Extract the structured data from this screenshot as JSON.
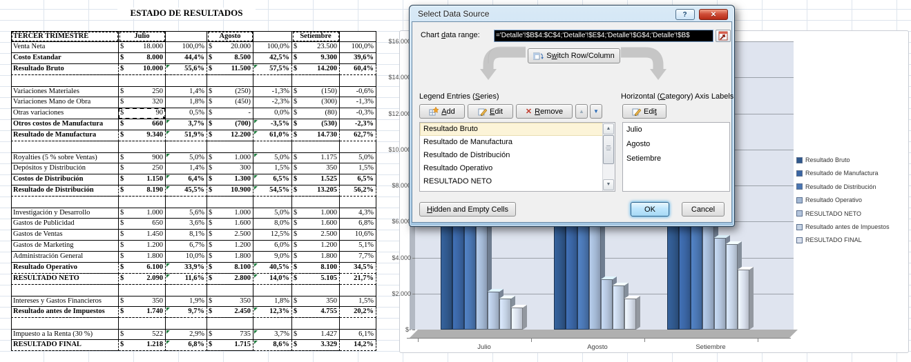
{
  "sheet": {
    "title": "ESTADO DE RESULTADOS"
  },
  "table": {
    "currency_symbol": "$",
    "header": {
      "label": "TERCER TRIMESTRE",
      "months": [
        "Julio",
        "Agosto",
        "Setiembre"
      ]
    },
    "rows": [
      {
        "label": "Venta Neta",
        "values": [
          "18.000",
          "100,0%",
          "20.000",
          "100,0%",
          "23.500",
          "100,0%"
        ]
      },
      {
        "label": "Costo Estandar",
        "bold": true,
        "values": [
          "8.000",
          "44,4%",
          "8.500",
          "42,5%",
          "9.300",
          "39,6%"
        ]
      },
      {
        "label": "Resultado Bruto",
        "bold": true,
        "selected": true,
        "error_marks": true,
        "values": [
          "10.000",
          "55,6%",
          "11.500",
          "57,5%",
          "14.200",
          "60,4%"
        ]
      },
      {
        "spacer": true
      },
      {
        "label": "Variaciones Materiales",
        "values": [
          "250",
          "1,4%",
          "(250)",
          "-1,3%",
          "(150)",
          "-0,6%"
        ]
      },
      {
        "label": "Variaciones Mano de Obra",
        "values": [
          "320",
          "1,8%",
          "(450)",
          "-2,3%",
          "(300)",
          "-1,3%"
        ]
      },
      {
        "label": "Otras variaciones",
        "active_cell": true,
        "values": [
          "90",
          "0,5%",
          "-",
          "0,0%",
          "(80)",
          "-0,3%"
        ]
      },
      {
        "label": "Otros costos de Manufactura",
        "bold": true,
        "error_marks": true,
        "values": [
          "660",
          "3,7%",
          "(700)",
          "-3,5%",
          "(530)",
          "-2,3%"
        ]
      },
      {
        "label": "Resultado de Manufactura",
        "bold": true,
        "selected": true,
        "error_marks": true,
        "values": [
          "9.340",
          "51,9%",
          "12.200",
          "61,0%",
          "14.730",
          "62,7%"
        ]
      },
      {
        "spacer": true
      },
      {
        "label": "Royalties (5 % sobre Ventas)",
        "error_marks": true,
        "values": [
          "900",
          "5,0%",
          "1.000",
          "5,0%",
          "1.175",
          "5,0%"
        ]
      },
      {
        "label": "Depósitos y Distribución",
        "values": [
          "250",
          "1,4%",
          "300",
          "1,5%",
          "350",
          "1,5%"
        ]
      },
      {
        "label": "Costos de Distribución",
        "bold": true,
        "error_marks": true,
        "values": [
          "1.150",
          "6,4%",
          "1.300",
          "6,5%",
          "1.525",
          "6,5%"
        ]
      },
      {
        "label": "Resultado de Distribución",
        "bold": true,
        "selected": true,
        "error_marks": true,
        "values": [
          "8.190",
          "45,5%",
          "10.900",
          "54,5%",
          "13.205",
          "56,2%"
        ]
      },
      {
        "spacer": true
      },
      {
        "label": "Investigación y Desarrollo",
        "values": [
          "1.000",
          "5,6%",
          "1.000",
          "5,0%",
          "1.000",
          "4,3%"
        ]
      },
      {
        "label": "Gastos de Publicidad",
        "values": [
          "650",
          "3,6%",
          "1.600",
          "8,0%",
          "1.600",
          "6,8%"
        ]
      },
      {
        "label": "Gastos de Ventas",
        "values": [
          "1.450",
          "8,1%",
          "2.500",
          "12,5%",
          "2.500",
          "10,6%"
        ]
      },
      {
        "label": "Gastos de Marketing",
        "values": [
          "1.200",
          "6,7%",
          "1.200",
          "6,0%",
          "1.200",
          "5,1%"
        ]
      },
      {
        "label": "Administración General",
        "values": [
          "1.800",
          "10,0%",
          "1.800",
          "9,0%",
          "1.800",
          "7,7%"
        ]
      },
      {
        "label": "Resultado Operativo",
        "bold": true,
        "selected": true,
        "error_marks": true,
        "values": [
          "6.100",
          "33,9%",
          "8.100",
          "40,5%",
          "8.100",
          "34,5%"
        ]
      },
      {
        "label": "RESULTADO NETO",
        "bold": true,
        "selected": true,
        "error_marks": true,
        "values": [
          "2.090",
          "11,6%",
          "2.800",
          "14,0%",
          "5.105",
          "21,7%"
        ]
      },
      {
        "spacer": true
      },
      {
        "label": "Intereses y Gastos Financieros",
        "values": [
          "350",
          "1,9%",
          "350",
          "1,8%",
          "350",
          "1,5%"
        ]
      },
      {
        "label": "Resultado antes de Impuestos",
        "bold": true,
        "selected": true,
        "error_marks": true,
        "values": [
          "1.740",
          "9,7%",
          "2.450",
          "12,3%",
          "4.755",
          "20,2%"
        ]
      },
      {
        "spacer": true
      },
      {
        "label": "Impuesto a la Renta (30 %)",
        "error_marks": true,
        "values": [
          "522",
          "2,9%",
          "735",
          "3,7%",
          "1.427",
          "6,1%"
        ]
      },
      {
        "label": "RESULTADO FINAL",
        "bold": true,
        "selected": true,
        "error_marks": true,
        "values": [
          "1.218",
          "6,8%",
          "1.715",
          "8,6%",
          "3.329",
          "14,2%"
        ]
      }
    ]
  },
  "dialog": {
    "title": "Select Data Source",
    "help_icon": "?",
    "close_icon": "✕",
    "range_label": "Chart data range:",
    "range_value": "='Detalle'!$B$4:$C$4;'Detalle'!$E$4;'Detalle'!$G$4;'Detalle'!$B$",
    "switch_label": "Switch Row/Column",
    "legend_section": "Legend Entries (Series)",
    "axis_section": "Horizontal (Category) Axis Labels",
    "add_label": "Add",
    "edit_label": "Edit",
    "remove_label": "Remove",
    "axis_edit_label": "Edit",
    "series_items": [
      "Resultado Bruto",
      "Resultado de Manufactura",
      "Resultado de Distribución",
      "Resultado Operativo",
      "RESULTADO NETO"
    ],
    "selected_series_item": "Resultado Bruto",
    "category_items": [
      "Julio",
      "Agosto",
      "Setiembre"
    ],
    "hidden_cells_label": "Hidden and Empty Cells",
    "ok_label": "OK",
    "cancel_label": "Cancel"
  },
  "chart_data": {
    "type": "bar",
    "categories": [
      "Julio",
      "Agosto",
      "Setiembre"
    ],
    "series": [
      {
        "name": "Resultado Bruto",
        "color": "#30588C",
        "values": [
          10000,
          11500,
          14200
        ]
      },
      {
        "name": "Resultado de Manufactura",
        "color": "#3A65A3",
        "values": [
          9340,
          12200,
          14730
        ]
      },
      {
        "name": "Resultado de Distribución",
        "color": "#4A76B2",
        "values": [
          8190,
          10900,
          13205
        ]
      },
      {
        "name": "Resultado Operativo",
        "color": "#A3B8D4",
        "values": [
          6100,
          8100,
          8100
        ]
      },
      {
        "name": "RESULTADO NETO",
        "color": "#B3C4DC",
        "values": [
          2090,
          2800,
          5105
        ]
      },
      {
        "name": "Resultado antes de Impuestos",
        "color": "#C4D2E4",
        "values": [
          1740,
          2450,
          4755
        ]
      },
      {
        "name": "RESULTADO FINAL",
        "color": "#D8DFEC",
        "values": [
          1218,
          1715,
          3329
        ]
      }
    ],
    "ylim": [
      0,
      16000
    ],
    "ytick_step": 2000,
    "ytick_labels": [
      "$-",
      "$2.000",
      "$4.000",
      "$6.000",
      "$8.000",
      "$10.000",
      "$12.000",
      "$14.000",
      "$16.000"
    ],
    "legend_position": "right",
    "gridlines": true
  }
}
